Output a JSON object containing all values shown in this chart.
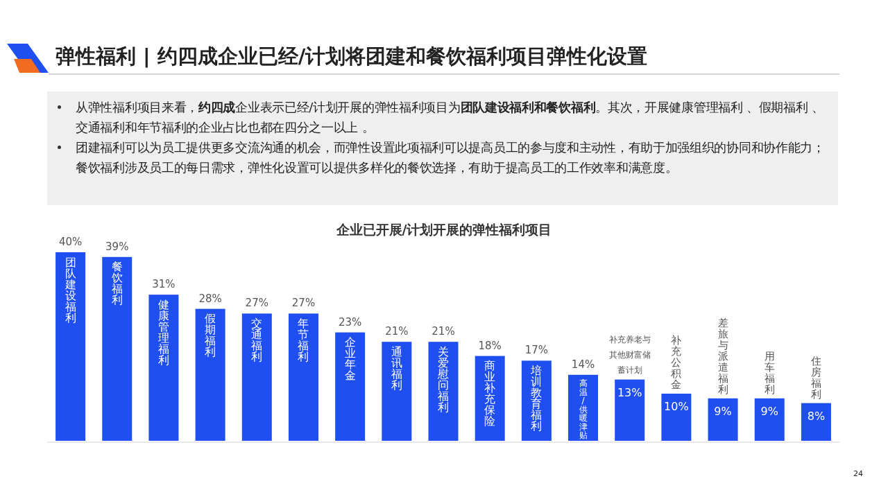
{
  "chart_data": {
    "type": "bar",
    "title": "弹性福利 | 约四成企业已经/计划将团建和餐饮福利项目弹性化设置",
    "subtitle": "企业已开展/计划开展的弹性福利项目",
    "annotations": [
      "从弹性福利项目来看，**约四成**企业表示已经/计划开展的弹性福利项目为**团队建设福利和餐饮福利**。其次，开展健康管理福利 、假期福利 、交通福利和年节福利的企业占比也都在四分之一以上 。",
      "团建福利可以为员工提供更多交流沟通的机会，而弹性设置此项福利可以提高员工的参与度和主动性，有助于加强组织的协同和协作能力；餐饮福利涉及员工的每日需求，弹性化设置可以提供多样化的餐饮选择，有助于提高员工的工作效率和满意度。",
      "24"
    ],
    "categories": [
      "团队建设福利",
      "餐饮福利",
      "健康管理福利",
      "假期福利",
      "交通福利",
      "年节福利",
      "企业年金",
      "通讯福利",
      "关爱慰问福利",
      "商业补充保险",
      "培训教育福利",
      "高温/供暖津贴",
      "补充养老与其他财富储蓄计划",
      "补充公积金",
      "差旅与派遣福利",
      "用车福利",
      "住房福利"
    ],
    "values": [
      40,
      39,
      31,
      28,
      27,
      27,
      23,
      21,
      21,
      18,
      17,
      14,
      13,
      10,
      9,
      9,
      8
    ],
    "value_labels": [
      "40%",
      "39%",
      "31%",
      "28%",
      "27%",
      "27%",
      "23%",
      "21%",
      "21%",
      "18%",
      "17%",
      "14%",
      "13%",
      "10%",
      "9%",
      "9%",
      "8%"
    ],
    "color": "#1f4ff0"
  }
}
